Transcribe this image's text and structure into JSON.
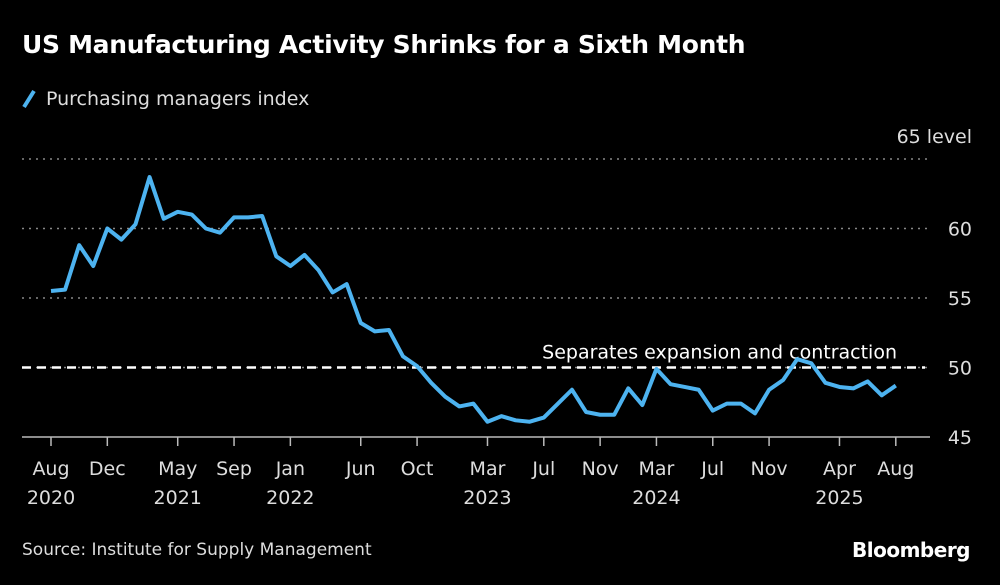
{
  "chart_data": {
    "type": "line",
    "title": "US Manufacturing Activity Shrinks for a Sixth Month",
    "series": [
      {
        "name": "Purchasing managers index",
        "color": "#4db3f0",
        "x": [
          "2020-08",
          "2020-09",
          "2020-10",
          "2020-11",
          "2020-12",
          "2021-01",
          "2021-02",
          "2021-03",
          "2021-04",
          "2021-05",
          "2021-06",
          "2021-07",
          "2021-08",
          "2021-09",
          "2021-10",
          "2021-11",
          "2021-12",
          "2022-01",
          "2022-02",
          "2022-03",
          "2022-04",
          "2022-05",
          "2022-06",
          "2022-07",
          "2022-08",
          "2022-09",
          "2022-10",
          "2022-11",
          "2022-12",
          "2023-01",
          "2023-02",
          "2023-03",
          "2023-04",
          "2023-05",
          "2023-06",
          "2023-07",
          "2023-08",
          "2023-09",
          "2023-10",
          "2023-11",
          "2023-12",
          "2024-01",
          "2024-02",
          "2024-03",
          "2024-04",
          "2024-05",
          "2024-06",
          "2024-07",
          "2024-08",
          "2024-09",
          "2024-10",
          "2024-11",
          "2024-12",
          "2025-01",
          "2025-02",
          "2025-03",
          "2025-04",
          "2025-05",
          "2025-06",
          "2025-07",
          "2025-08"
        ],
        "values": [
          55.5,
          55.6,
          58.8,
          57.3,
          60.0,
          59.2,
          60.3,
          63.7,
          60.7,
          61.2,
          61.0,
          60.0,
          59.7,
          60.8,
          60.8,
          60.9,
          58.0,
          57.3,
          58.1,
          57.0,
          55.4,
          56.0,
          53.2,
          52.6,
          52.7,
          50.8,
          50.1,
          48.9,
          47.9,
          47.2,
          47.4,
          46.1,
          46.5,
          46.2,
          46.1,
          46.4,
          47.4,
          48.4,
          46.8,
          46.6,
          46.6,
          48.5,
          47.3,
          49.9,
          48.8,
          48.6,
          48.4,
          46.9,
          47.4,
          47.4,
          46.7,
          48.4,
          49.1,
          50.6,
          50.3,
          48.9,
          48.6,
          48.5,
          49.0,
          48.0,
          48.7
        ]
      }
    ],
    "yticks": [
      {
        "v": 65,
        "label": "65 level"
      },
      {
        "v": 60,
        "label": "60"
      },
      {
        "v": 55,
        "label": "55"
      },
      {
        "v": 50,
        "label": "50"
      },
      {
        "v": 45,
        "label": "45"
      }
    ],
    "ylim": [
      45,
      65
    ],
    "xticks": [
      {
        "i": 0,
        "m": "Aug",
        "y": "2020"
      },
      {
        "i": 4,
        "m": "Dec",
        "y": ""
      },
      {
        "i": 9,
        "m": "May",
        "y": "2021"
      },
      {
        "i": 13,
        "m": "Sep",
        "y": ""
      },
      {
        "i": 17,
        "m": "Jan",
        "y": "2022"
      },
      {
        "i": 22,
        "m": "Jun",
        "y": ""
      },
      {
        "i": 26,
        "m": "Oct",
        "y": ""
      },
      {
        "i": 31,
        "m": "Mar",
        "y": "2023"
      },
      {
        "i": 35,
        "m": "Jul",
        "y": ""
      },
      {
        "i": 39,
        "m": "Nov",
        "y": ""
      },
      {
        "i": 43,
        "m": "Mar",
        "y": "2024"
      },
      {
        "i": 47,
        "m": "Jul",
        "y": ""
      },
      {
        "i": 51,
        "m": "Nov",
        "y": ""
      },
      {
        "i": 56,
        "m": "Apr",
        "y": "2025"
      },
      {
        "i": 60,
        "m": "Aug",
        "y": ""
      }
    ],
    "reference_line": {
      "value": 50,
      "label": "Separates expansion and contraction"
    },
    "grid": true,
    "legend": "top-left"
  },
  "source": "Source: Institute for Supply Management",
  "logo": "Bloomberg"
}
